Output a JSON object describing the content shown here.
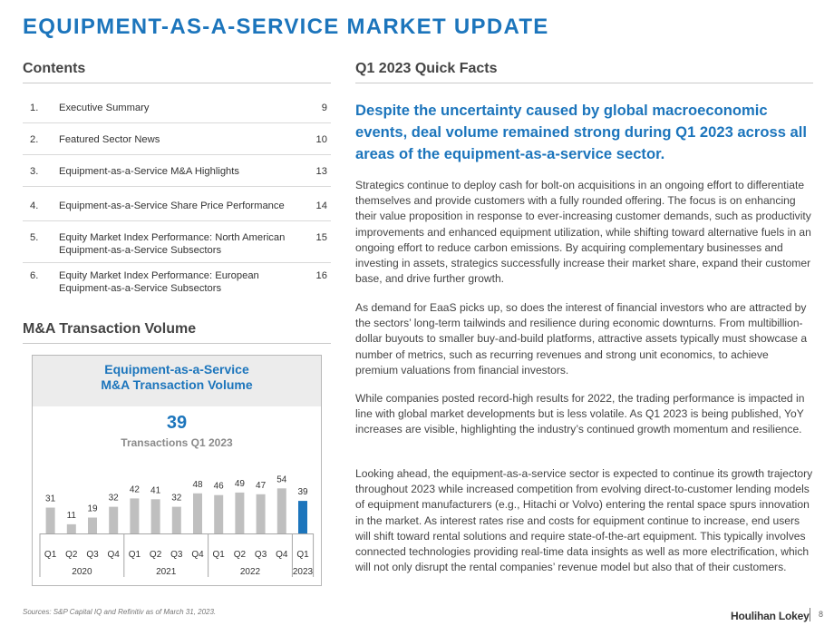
{
  "page_title": "EQUIPMENT-AS-A-SERVICE MARKET UPDATE",
  "contents": {
    "heading": "Contents",
    "items": [
      {
        "num": "1.",
        "label": "Executive Summary",
        "page": "9"
      },
      {
        "num": "2.",
        "label": "Featured Sector News",
        "page": "10"
      },
      {
        "num": "3.",
        "label": "Equipment-as-a-Service M&A Highlights",
        "page": "13"
      },
      {
        "num": "4.",
        "label": "Equipment-as-a-Service Share Price Performance",
        "page": "14"
      },
      {
        "num": "5.",
        "label": "Equity Market Index Performance: North American Equipment-as-a-Service Subsectors",
        "page": "15"
      },
      {
        "num": "6.",
        "label": "Equity Market Index Performance: European Equipment-as-a-Service Subsectors",
        "page": "16"
      }
    ]
  },
  "ma_section": {
    "heading": "M&A Transaction Volume",
    "panel_title_line1": "Equipment-as-a-Service",
    "panel_title_line2": "M&A Transaction Volume",
    "headline_value": "39",
    "headline_label": "Transactions Q1 2023"
  },
  "chart_data": {
    "type": "bar",
    "title": "Equipment-as-a-Service M&A Transaction Volume",
    "categories": [
      "Q1",
      "Q2",
      "Q3",
      "Q4",
      "Q1",
      "Q2",
      "Q3",
      "Q4",
      "Q1",
      "Q2",
      "Q3",
      "Q4",
      "Q1"
    ],
    "years": [
      {
        "label": "2020",
        "start": 0,
        "end": 3
      },
      {
        "label": "2021",
        "start": 4,
        "end": 7
      },
      {
        "label": "2022",
        "start": 8,
        "end": 11
      },
      {
        "label": "2023",
        "start": 12,
        "end": 12
      }
    ],
    "values": [
      31,
      11,
      19,
      32,
      42,
      41,
      32,
      48,
      46,
      49,
      47,
      54,
      39
    ],
    "highlight_index": 12,
    "colors": {
      "bar": "#bfbfbf",
      "highlight": "#1c75bc",
      "label": "#333333"
    },
    "grid": false,
    "legend": "none"
  },
  "quick_facts": {
    "heading": "Q1 2023 Quick Facts",
    "lead": "Despite the uncertainty caused by global macroeconomic events, deal volume remained strong during Q1 2023 across all areas of the equipment-as-a-service sector.",
    "paragraphs": [
      "Strategics continue to deploy cash for bolt-on acquisitions in an ongoing effort to differentiate themselves and provide customers with a fully rounded offering. The focus is on enhancing their value proposition in response to ever-increasing customer demands, such as productivity improvements and enhanced equipment utilization, while shifting toward alternative fuels in an ongoing effort to reduce carbon emissions. By acquiring complementary businesses and investing in assets, strategics successfully increase their market share, expand their customer base, and drive further growth.",
      "As demand for EaaS picks up, so does the interest of financial investors who are attracted by the sectors’ long-term tailwinds and resilience during economic downturns. From multibillion-dollar buyouts to smaller buy-and-build platforms, attractive assets typically must showcase a number of metrics, such as recurring revenues and strong unit economics, to achieve premium valuations from financial investors.",
      "While companies posted record-high results for 2022, the trading performance is impacted in line with global market developments but is less volatile. As Q1 2023 is being published, YoY increases are visible, highlighting the industry’s continued growth momentum and resilience.",
      "Looking ahead, the equipment-as-a-service sector is expected to continue its growth trajectory throughout 2023 while increased competition from evolving direct-to-customer lending models of equipment manufacturers (e.g., Hitachi or Volvo) entering the rental space spurs innovation in the market. As interest rates rise and costs for equipment continue to increase, end users will shift toward rental solutions and require state-of-the-art equipment. This typically involves connected technologies providing real-time data insights as well as more electrification, which will not only disrupt the rental companies’ revenue model but also that of their customers."
    ]
  },
  "footer": {
    "source": "Sources: S&P Capital IQ and Refinitiv as of March 31, 2023.",
    "brand": "Houlihan Lokey",
    "page_number": "8"
  }
}
